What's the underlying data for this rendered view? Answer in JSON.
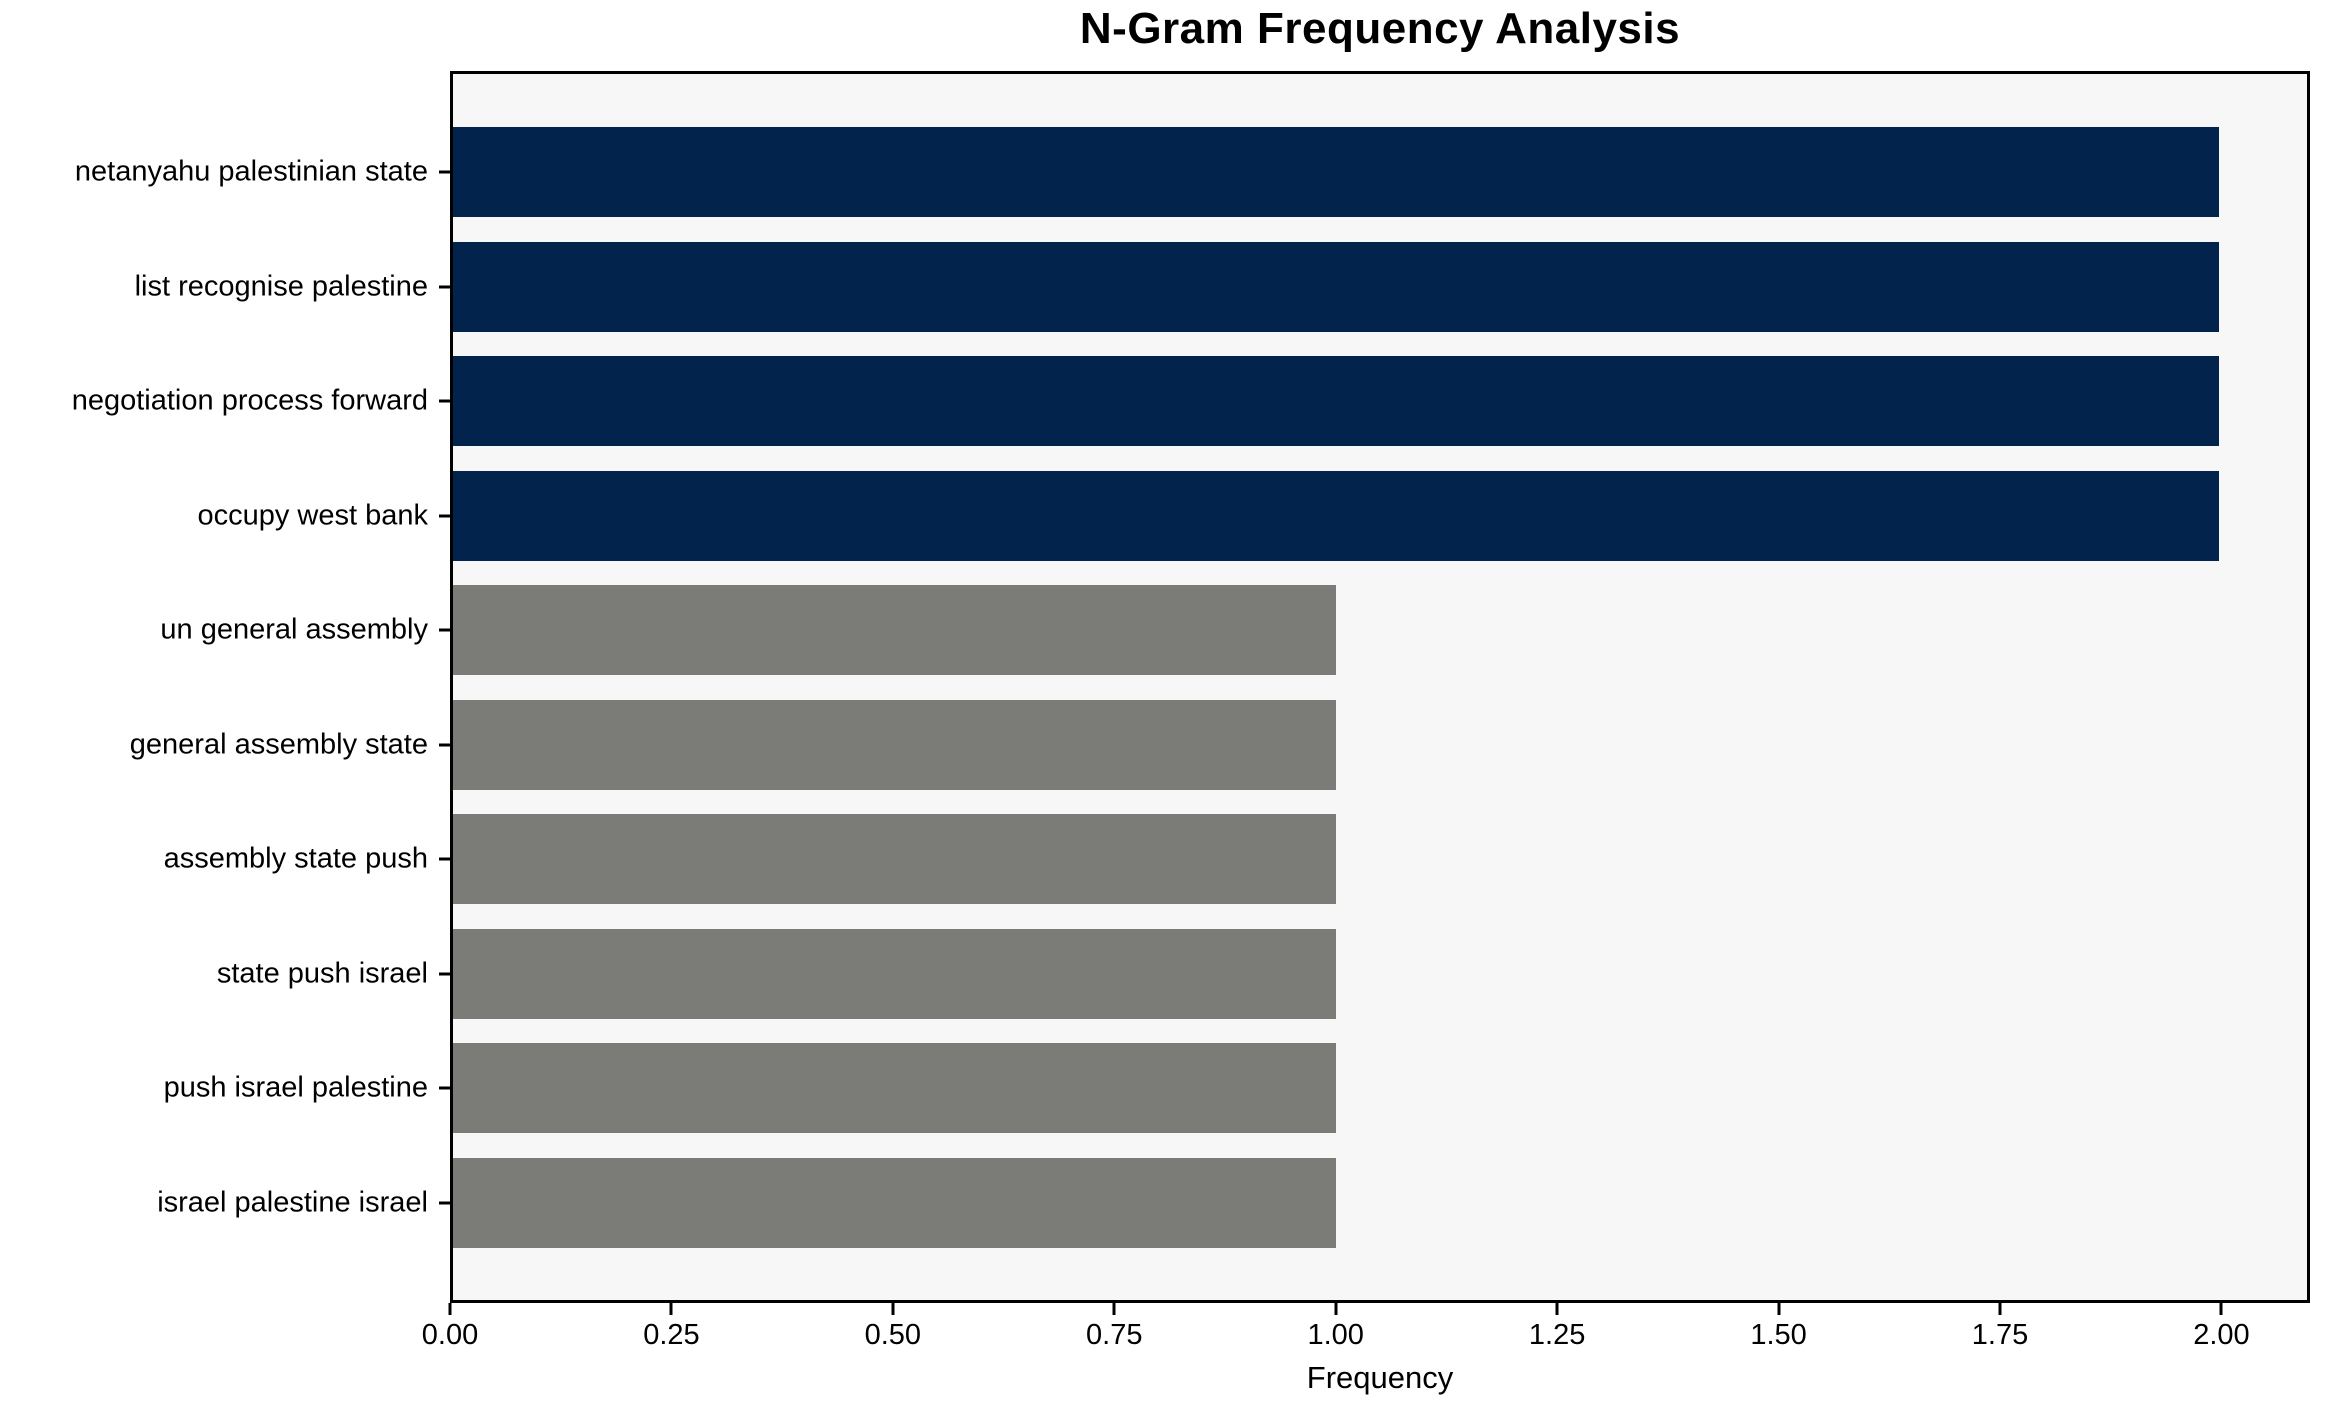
{
  "chart_data": {
    "type": "bar",
    "orientation": "horizontal",
    "title": "N-Gram Frequency Analysis",
    "xlabel": "Frequency",
    "ylabel": "",
    "categories": [
      "netanyahu palestinian state",
      "list recognise palestine",
      "negotiation process forward",
      "occupy west bank",
      "un general assembly",
      "general assembly state",
      "assembly state push",
      "state push israel",
      "push israel palestine",
      "israel palestine israel"
    ],
    "values": [
      2,
      2,
      2,
      2,
      1,
      1,
      1,
      1,
      1,
      1
    ],
    "bar_colors": [
      "#02234b",
      "#02234b",
      "#02234b",
      "#02234b",
      "#7b7b77",
      "#7b7b77",
      "#7b7b77",
      "#7b7b77",
      "#7b7b77",
      "#7b7b77"
    ],
    "x_tick_labels": [
      "0.00",
      "0.25",
      "0.50",
      "0.75",
      "1.00",
      "1.25",
      "1.50",
      "1.75",
      "2.00"
    ],
    "x_tick_values": [
      0,
      0.25,
      0.5,
      0.75,
      1,
      1.25,
      1.5,
      1.75,
      2
    ],
    "xlim": [
      0,
      2.1
    ],
    "grid": false,
    "legend": "none",
    "colors": {
      "high_frequency_bar": "#02234b",
      "low_frequency_bar": "#7b7b77",
      "plot_background": "#f7f7f7",
      "figure_background": "#ffffff",
      "axis": "#000000",
      "text": "#000000"
    }
  }
}
